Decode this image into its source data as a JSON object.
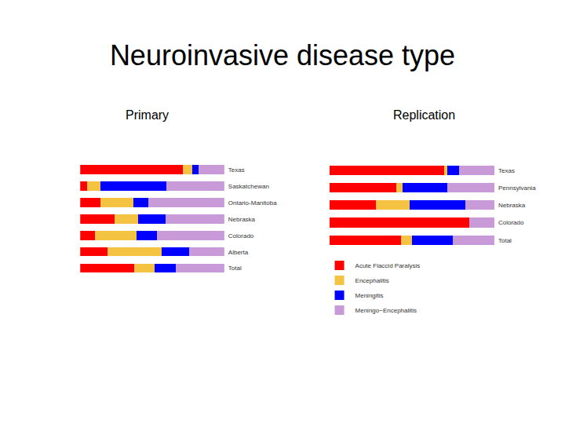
{
  "title": "Neuroinvasive disease type",
  "chart_data": [
    {
      "type": "bar",
      "title": "Primary",
      "orientation": "horizontal",
      "stacked": true,
      "tick_labels": "y",
      "xlim": [
        0,
        100
      ],
      "categories": [
        "Texas",
        "Saskatchewan",
        "Ontario-Manitoba",
        "Nebraska",
        "Colorado",
        "Alberta",
        "Total"
      ],
      "series": [
        {
          "name": "Acute Flaccid Paralysis",
          "color": "#ff0000",
          "values": [
            71,
            5,
            14,
            24,
            10,
            19,
            37.5
          ]
        },
        {
          "name": "Encephalitis",
          "color": "#f5c342",
          "values": [
            6.5,
            9,
            23,
            16,
            29,
            37.5,
            14
          ]
        },
        {
          "name": "Meningitis",
          "color": "#0000ff",
          "values": [
            4.5,
            46,
            10,
            19,
            14,
            19,
            15
          ]
        },
        {
          "name": "Meningo−Encephalitis",
          "color": "#c89ad8",
          "values": [
            18,
            40,
            53,
            41,
            47,
            24.5,
            33.5
          ]
        }
      ]
    },
    {
      "type": "bar",
      "title": "Replication",
      "orientation": "horizontal",
      "stacked": true,
      "tick_labels": "y",
      "legend": "bottom left",
      "xlim": [
        0,
        100
      ],
      "categories": [
        "Texas",
        "Pennsylvania",
        "Nebraska",
        "Colorado",
        "Total"
      ],
      "series": [
        {
          "name": "Acute Flaccid Paralysis",
          "color": "#ff0000",
          "values": [
            69.5,
            40.5,
            28,
            85,
            43.5
          ]
        },
        {
          "name": "Encephalitis",
          "color": "#f5c342",
          "values": [
            2,
            4,
            20.5,
            0,
            6.5
          ]
        },
        {
          "name": "Meningitis",
          "color": "#0000ff",
          "values": [
            7,
            27,
            34,
            0,
            25
          ]
        },
        {
          "name": "Meningo−Encephalitis",
          "color": "#c89ad8",
          "values": [
            21.5,
            28.5,
            17.5,
            15,
            25
          ]
        }
      ]
    }
  ]
}
